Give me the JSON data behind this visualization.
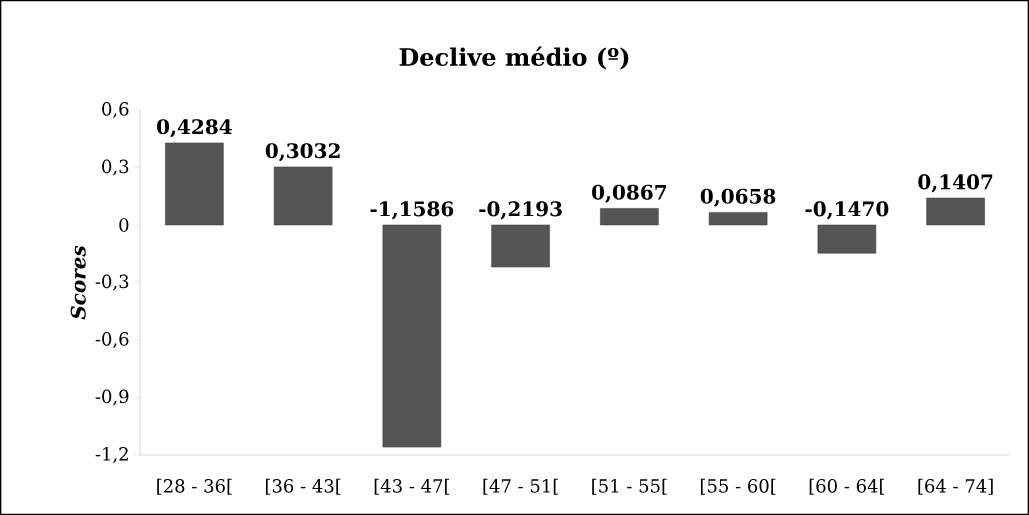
{
  "chart_data": {
    "type": "bar",
    "title": "Declive médio (º)",
    "ylabel": "Scores",
    "categories": [
      "[28 - 36[",
      "[36 - 43[",
      "[43 - 47[",
      "[47 - 51[",
      "[51 - 55[",
      "[55 - 60[",
      "[60 - 64[",
      "[64 - 74]"
    ],
    "values": [
      0.4284,
      0.3032,
      -1.1586,
      -0.2193,
      0.0867,
      0.0658,
      -0.147,
      0.1407
    ],
    "value_labels": [
      "0,4284",
      "0,3032",
      "-1,1586",
      "-0,2193",
      "0,0867",
      "0,0658",
      "-0,1470",
      "0,1407"
    ],
    "color": "#555555",
    "ylim": [
      -1.2,
      0.6
    ],
    "yticks": [
      {
        "value": -1.2,
        "label": "-1,2"
      },
      {
        "value": -0.9,
        "label": "-0,9"
      },
      {
        "value": -0.6,
        "label": "-0,6"
      },
      {
        "value": -0.3,
        "label": "-0,3"
      },
      0,
      {
        "value": 0.3,
        "label": "0,3"
      },
      {
        "value": 0.6,
        "label": "0,6"
      }
    ],
    "grid": false
  }
}
